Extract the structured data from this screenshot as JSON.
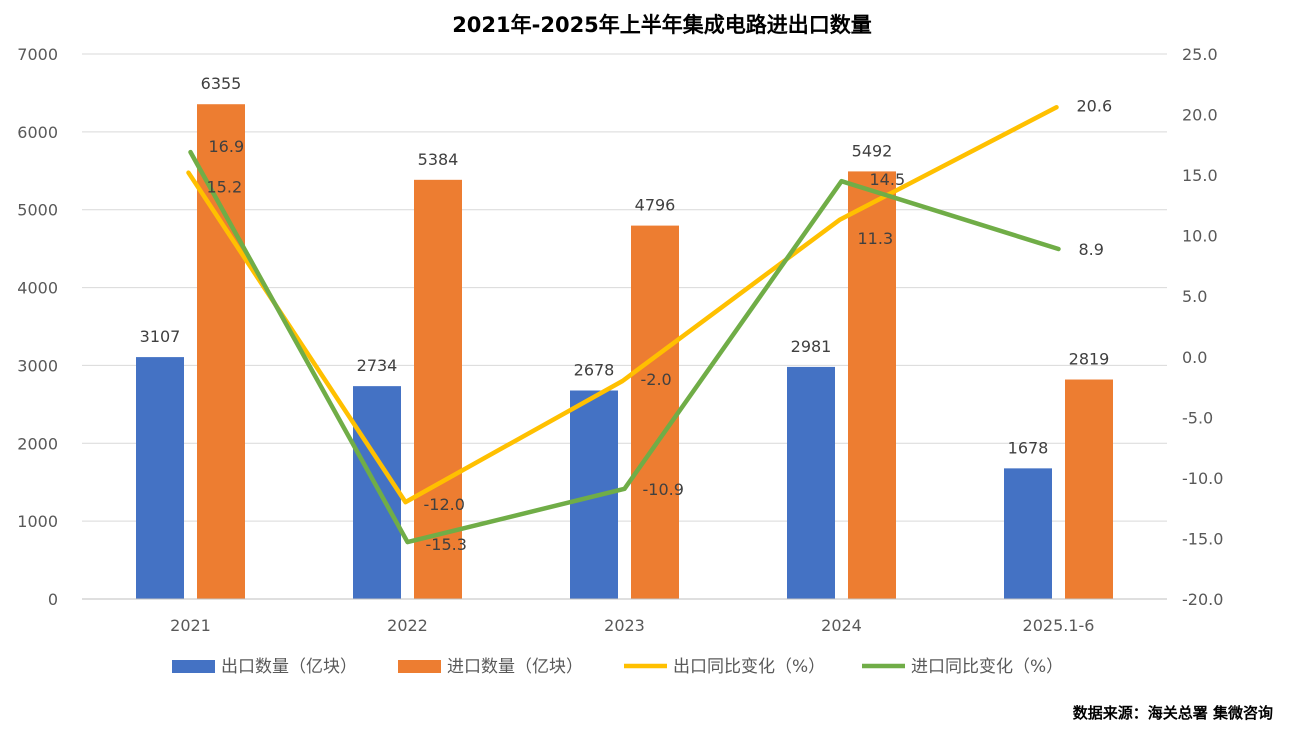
{
  "chart_data": {
    "type": "bar",
    "title": "2021年-2025年上半年集成电路进出口数量",
    "categories": [
      "2021",
      "2022",
      "2023",
      "2024",
      "2025.1-6"
    ],
    "series": [
      {
        "name": "出口数量（亿块）",
        "type": "bar",
        "axis": "left",
        "color": "#4472C4",
        "values": [
          3107,
          2734,
          2678,
          2981,
          1678
        ]
      },
      {
        "name": "进口数量（亿块）",
        "type": "bar",
        "axis": "left",
        "color": "#ED7D31",
        "values": [
          6355,
          5384,
          4796,
          5492,
          2819
        ]
      },
      {
        "name": "出口同比变化（%）",
        "type": "line",
        "axis": "right",
        "color": "#FFC000",
        "values": [
          15.2,
          -12.0,
          -2.0,
          11.3,
          20.6
        ]
      },
      {
        "name": "进口同比变化（%）",
        "type": "line",
        "axis": "right",
        "color": "#70AD47",
        "values": [
          16.9,
          -15.3,
          -10.9,
          14.5,
          8.9
        ]
      }
    ],
    "y_left": {
      "min": 0,
      "max": 7000,
      "ticks": [
        "0",
        "1000",
        "2000",
        "3000",
        "4000",
        "5000",
        "6000",
        "7000"
      ]
    },
    "y_right": {
      "min": -20,
      "max": 25,
      "ticks": [
        "-20.0",
        "-15.0",
        "-10.0",
        "-5.0",
        "0.0",
        "5.0",
        "10.0",
        "15.0",
        "20.0",
        "25.0"
      ]
    },
    "bar_labels": [
      [
        "3107",
        "2734",
        "2678",
        "2981",
        "1678"
      ],
      [
        "6355",
        "5384",
        "4796",
        "5492",
        "2819"
      ]
    ],
    "line_labels": [
      [
        "15.2",
        "-12.0",
        "-2.0",
        "11.3",
        "20.6"
      ],
      [
        "16.9",
        "-15.3",
        "-10.9",
        "14.5",
        "8.9"
      ]
    ],
    "grid": true,
    "legend_position": "bottom",
    "source": "数据来源：海关总署   集微咨询"
  }
}
